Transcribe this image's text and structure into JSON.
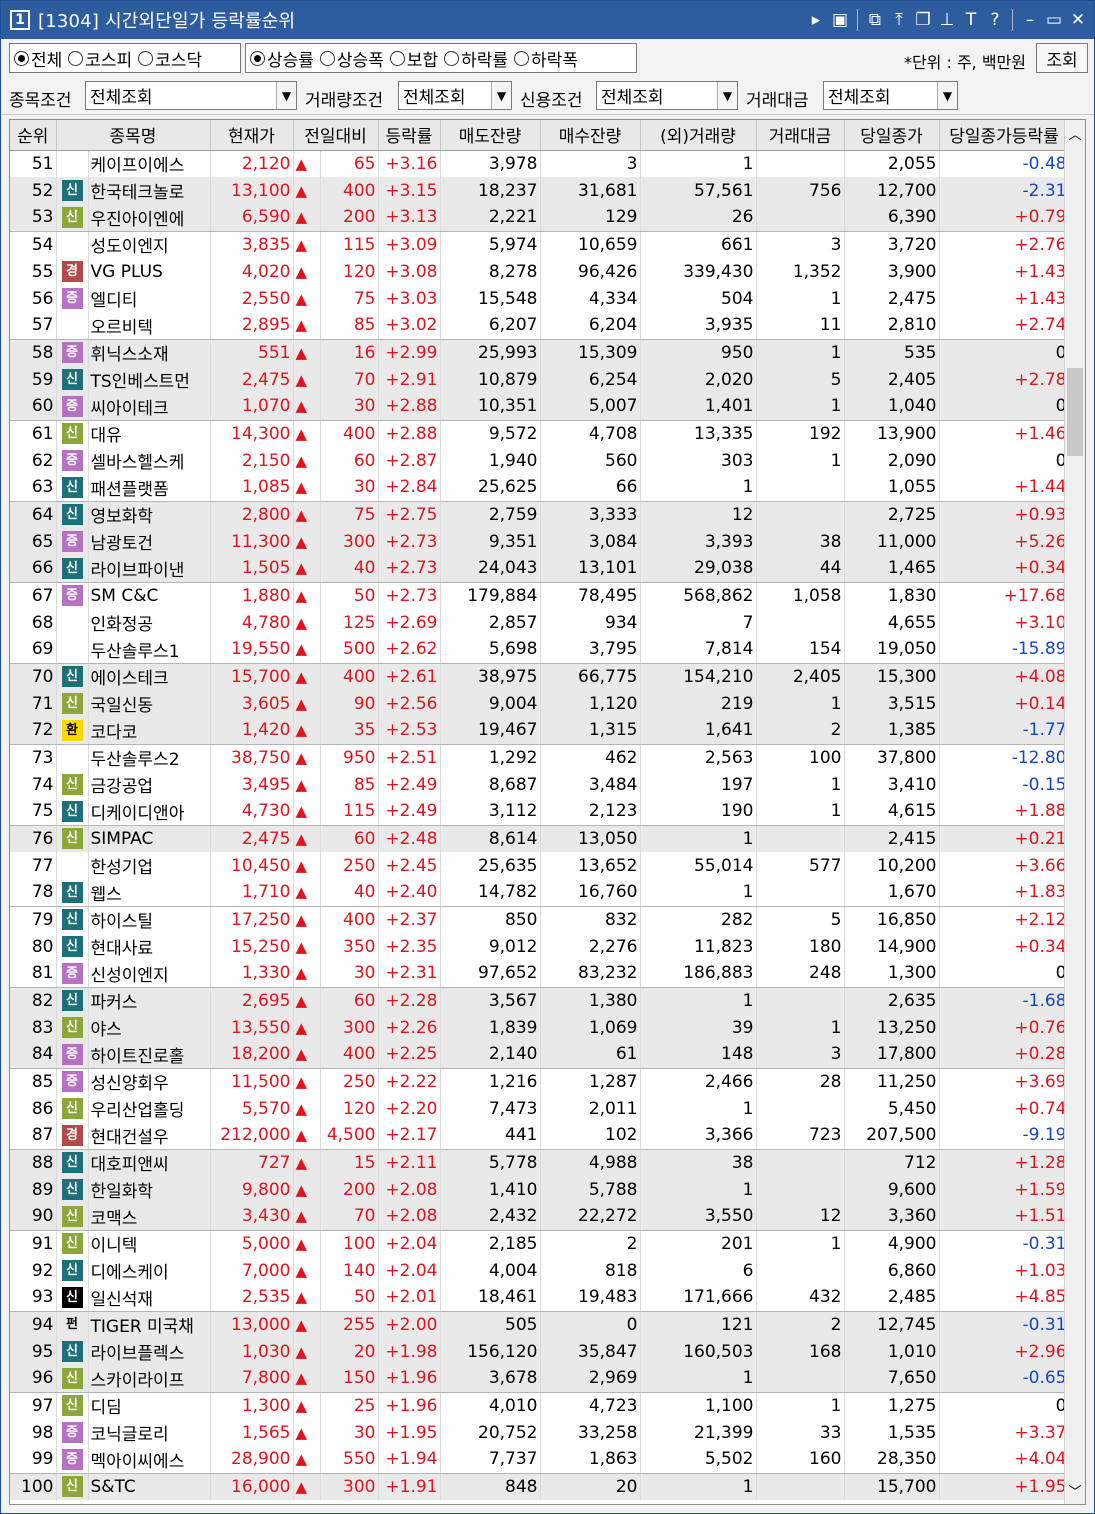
{
  "window": {
    "number": "1",
    "title": "[1304] 시간외단일가 등락률순위"
  },
  "titlebar_icons": [
    "chevron-right-icon",
    "box-icon",
    "copy-icon",
    "pin-top-icon",
    "restore-icon",
    "pin-icon",
    "font-icon",
    "help-icon",
    "minimize-icon",
    "maximize-icon",
    "close-icon"
  ],
  "market_options": [
    {
      "label": "전체",
      "selected": true
    },
    {
      "label": "코스피",
      "selected": false
    },
    {
      "label": "코스닥",
      "selected": false
    }
  ],
  "sort_options": [
    {
      "label": "상승률",
      "selected": true
    },
    {
      "label": "상승폭",
      "selected": false
    },
    {
      "label": "보합",
      "selected": false
    },
    {
      "label": "하락률",
      "selected": false
    },
    {
      "label": "하락폭",
      "selected": false
    }
  ],
  "unit_label": "*단위 : 주, 백만원",
  "query_button": "조회",
  "filters": [
    {
      "label": "종목조건",
      "value": "전체조회"
    },
    {
      "label": "거래량조건",
      "value": "전체조회"
    },
    {
      "label": "신용조건",
      "value": "전체조회"
    },
    {
      "label": "거래대금",
      "value": "전체조회"
    }
  ],
  "columns": [
    "순위",
    "종목명",
    "현재가",
    "전일대비",
    "등락률",
    "매도잔량",
    "매수잔량",
    "(외)거래량",
    "거래대금",
    "당일종가",
    "당일종가등락률"
  ],
  "colors": {
    "up": "#e0141e",
    "down": "#1545c9",
    "title_bar": "#2d5d9f"
  },
  "rows": [
    {
      "rank": "51",
      "badge": "",
      "name": "케이프이에스",
      "price": "2,120",
      "change": "65",
      "rate": "+3.16",
      "sell": "3,978",
      "buy": "3",
      "volume": "1",
      "amount": "",
      "close": "2,055",
      "close_rate": "-0.48"
    },
    {
      "rank": "52",
      "badge": "신",
      "name": "한국테크놀로",
      "price": "13,100",
      "change": "400",
      "rate": "+3.15",
      "sell": "18,237",
      "buy": "31,681",
      "volume": "57,561",
      "amount": "756",
      "close": "12,700",
      "close_rate": "-2.31"
    },
    {
      "rank": "53",
      "badge": "신",
      "name": "우진아이엔에",
      "price": "6,590",
      "change": "200",
      "rate": "+3.13",
      "sell": "2,221",
      "buy": "129",
      "volume": "26",
      "amount": "",
      "close": "6,390",
      "close_rate": "+0.79"
    },
    {
      "rank": "54",
      "badge": "",
      "name": "성도이엔지",
      "price": "3,835",
      "change": "115",
      "rate": "+3.09",
      "sell": "5,974",
      "buy": "10,659",
      "volume": "661",
      "amount": "3",
      "close": "3,720",
      "close_rate": "+2.76"
    },
    {
      "rank": "55",
      "badge": "경",
      "name": "VG PLUS",
      "price": "4,020",
      "change": "120",
      "rate": "+3.08",
      "sell": "8,278",
      "buy": "96,426",
      "volume": "339,430",
      "amount": "1,352",
      "close": "3,900",
      "close_rate": "+1.43"
    },
    {
      "rank": "56",
      "badge": "증",
      "name": "엘디티",
      "price": "2,550",
      "change": "75",
      "rate": "+3.03",
      "sell": "15,548",
      "buy": "4,334",
      "volume": "504",
      "amount": "1",
      "close": "2,475",
      "close_rate": "+1.43"
    },
    {
      "rank": "57",
      "badge": "",
      "name": "오르비텍",
      "price": "2,895",
      "change": "85",
      "rate": "+3.02",
      "sell": "6,207",
      "buy": "6,204",
      "volume": "3,935",
      "amount": "11",
      "close": "2,810",
      "close_rate": "+2.74"
    },
    {
      "rank": "58",
      "badge": "증",
      "name": "휘닉스소재",
      "price": "551",
      "change": "16",
      "rate": "+2.99",
      "sell": "25,993",
      "buy": "15,309",
      "volume": "950",
      "amount": "1",
      "close": "535",
      "close_rate": "0"
    },
    {
      "rank": "59",
      "badge": "신",
      "name": "TS인베스트먼",
      "price": "2,475",
      "change": "70",
      "rate": "+2.91",
      "sell": "10,879",
      "buy": "6,254",
      "volume": "2,020",
      "amount": "5",
      "close": "2,405",
      "close_rate": "+2.78"
    },
    {
      "rank": "60",
      "badge": "증",
      "name": "씨아이테크",
      "price": "1,070",
      "change": "30",
      "rate": "+2.88",
      "sell": "10,351",
      "buy": "5,007",
      "volume": "1,401",
      "amount": "1",
      "close": "1,040",
      "close_rate": "0"
    },
    {
      "rank": "61",
      "badge": "신",
      "name": "대유",
      "price": "14,300",
      "change": "400",
      "rate": "+2.88",
      "sell": "9,572",
      "buy": "4,708",
      "volume": "13,335",
      "amount": "192",
      "close": "13,900",
      "close_rate": "+1.46"
    },
    {
      "rank": "62",
      "badge": "증",
      "name": "셀바스헬스케",
      "price": "2,150",
      "change": "60",
      "rate": "+2.87",
      "sell": "1,940",
      "buy": "560",
      "volume": "303",
      "amount": "1",
      "close": "2,090",
      "close_rate": "0"
    },
    {
      "rank": "63",
      "badge": "신",
      "name": "패션플랫폼",
      "price": "1,085",
      "change": "30",
      "rate": "+2.84",
      "sell": "25,625",
      "buy": "66",
      "volume": "1",
      "amount": "",
      "close": "1,055",
      "close_rate": "+1.44"
    },
    {
      "rank": "64",
      "badge": "신",
      "name": "영보화학",
      "price": "2,800",
      "change": "75",
      "rate": "+2.75",
      "sell": "2,759",
      "buy": "3,333",
      "volume": "12",
      "amount": "",
      "close": "2,725",
      "close_rate": "+0.93"
    },
    {
      "rank": "65",
      "badge": "증",
      "name": "남광토건",
      "price": "11,300",
      "change": "300",
      "rate": "+2.73",
      "sell": "9,351",
      "buy": "3,084",
      "volume": "3,393",
      "amount": "38",
      "close": "11,000",
      "close_rate": "+5.26"
    },
    {
      "rank": "66",
      "badge": "신",
      "name": "라이브파이낸",
      "price": "1,505",
      "change": "40",
      "rate": "+2.73",
      "sell": "24,043",
      "buy": "13,101",
      "volume": "29,038",
      "amount": "44",
      "close": "1,465",
      "close_rate": "+0.34"
    },
    {
      "rank": "67",
      "badge": "증",
      "name": "SM C&C",
      "price": "1,880",
      "change": "50",
      "rate": "+2.73",
      "sell": "179,884",
      "buy": "78,495",
      "volume": "568,862",
      "amount": "1,058",
      "close": "1,830",
      "close_rate": "+17.68"
    },
    {
      "rank": "68",
      "badge": "",
      "name": "인화정공",
      "price": "4,780",
      "change": "125",
      "rate": "+2.69",
      "sell": "2,857",
      "buy": "934",
      "volume": "7",
      "amount": "",
      "close": "4,655",
      "close_rate": "+3.10"
    },
    {
      "rank": "69",
      "badge": "",
      "name": "두산솔루스1",
      "price": "19,550",
      "change": "500",
      "rate": "+2.62",
      "sell": "5,698",
      "buy": "3,795",
      "volume": "7,814",
      "amount": "154",
      "close": "19,050",
      "close_rate": "-15.89"
    },
    {
      "rank": "70",
      "badge": "신",
      "name": "에이스테크",
      "price": "15,700",
      "change": "400",
      "rate": "+2.61",
      "sell": "38,975",
      "buy": "66,775",
      "volume": "154,210",
      "amount": "2,405",
      "close": "15,300",
      "close_rate": "+4.08"
    },
    {
      "rank": "71",
      "badge": "신",
      "name": "국일신동",
      "price": "3,605",
      "change": "90",
      "rate": "+2.56",
      "sell": "9,004",
      "buy": "1,120",
      "volume": "219",
      "amount": "1",
      "close": "3,515",
      "close_rate": "+0.14"
    },
    {
      "rank": "72",
      "badge": "환",
      "name": "코다코",
      "price": "1,420",
      "change": "35",
      "rate": "+2.53",
      "sell": "19,467",
      "buy": "1,315",
      "volume": "1,641",
      "amount": "2",
      "close": "1,385",
      "close_rate": "-1.77"
    },
    {
      "rank": "73",
      "badge": "",
      "name": "두산솔루스2",
      "price": "38,750",
      "change": "950",
      "rate": "+2.51",
      "sell": "1,292",
      "buy": "462",
      "volume": "2,563",
      "amount": "100",
      "close": "37,800",
      "close_rate": "-12.80"
    },
    {
      "rank": "74",
      "badge": "신",
      "name": "금강공업",
      "price": "3,495",
      "change": "85",
      "rate": "+2.49",
      "sell": "8,687",
      "buy": "3,484",
      "volume": "197",
      "amount": "1",
      "close": "3,410",
      "close_rate": "-0.15"
    },
    {
      "rank": "75",
      "badge": "신",
      "name": "디케이디앤아",
      "price": "4,730",
      "change": "115",
      "rate": "+2.49",
      "sell": "3,112",
      "buy": "2,123",
      "volume": "190",
      "amount": "1",
      "close": "4,615",
      "close_rate": "+1.88"
    },
    {
      "rank": "76",
      "badge": "신",
      "name": "SIMPAC",
      "price": "2,475",
      "change": "60",
      "rate": "+2.48",
      "sell": "8,614",
      "buy": "13,050",
      "volume": "1",
      "amount": "",
      "close": "2,415",
      "close_rate": "+0.21"
    },
    {
      "rank": "77",
      "badge": "",
      "name": "한성기업",
      "price": "10,450",
      "change": "250",
      "rate": "+2.45",
      "sell": "25,635",
      "buy": "13,652",
      "volume": "55,014",
      "amount": "577",
      "close": "10,200",
      "close_rate": "+3.66"
    },
    {
      "rank": "78",
      "badge": "신",
      "name": "웹스",
      "price": "1,710",
      "change": "40",
      "rate": "+2.40",
      "sell": "14,782",
      "buy": "16,760",
      "volume": "1",
      "amount": "",
      "close": "1,670",
      "close_rate": "+1.83"
    },
    {
      "rank": "79",
      "badge": "신",
      "name": "하이스틸",
      "price": "17,250",
      "change": "400",
      "rate": "+2.37",
      "sell": "850",
      "buy": "832",
      "volume": "282",
      "amount": "5",
      "close": "16,850",
      "close_rate": "+2.12"
    },
    {
      "rank": "80",
      "badge": "신",
      "name": "현대사료",
      "price": "15,250",
      "change": "350",
      "rate": "+2.35",
      "sell": "9,012",
      "buy": "2,276",
      "volume": "11,823",
      "amount": "180",
      "close": "14,900",
      "close_rate": "+0.34"
    },
    {
      "rank": "81",
      "badge": "증",
      "name": "신성이엔지",
      "price": "1,330",
      "change": "30",
      "rate": "+2.31",
      "sell": "97,652",
      "buy": "83,232",
      "volume": "186,883",
      "amount": "248",
      "close": "1,300",
      "close_rate": "0"
    },
    {
      "rank": "82",
      "badge": "신",
      "name": "파커스",
      "price": "2,695",
      "change": "60",
      "rate": "+2.28",
      "sell": "3,567",
      "buy": "1,380",
      "volume": "1",
      "amount": "",
      "close": "2,635",
      "close_rate": "-1.68"
    },
    {
      "rank": "83",
      "badge": "신",
      "name": "야스",
      "price": "13,550",
      "change": "300",
      "rate": "+2.26",
      "sell": "1,839",
      "buy": "1,069",
      "volume": "39",
      "amount": "1",
      "close": "13,250",
      "close_rate": "+0.76"
    },
    {
      "rank": "84",
      "badge": "증",
      "name": "하이트진로홀",
      "price": "18,200",
      "change": "400",
      "rate": "+2.25",
      "sell": "2,140",
      "buy": "61",
      "volume": "148",
      "amount": "3",
      "close": "17,800",
      "close_rate": "+0.28"
    },
    {
      "rank": "85",
      "badge": "증",
      "name": "성신양회우",
      "price": "11,500",
      "change": "250",
      "rate": "+2.22",
      "sell": "1,216",
      "buy": "1,287",
      "volume": "2,466",
      "amount": "28",
      "close": "11,250",
      "close_rate": "+3.69"
    },
    {
      "rank": "86",
      "badge": "신",
      "name": "우리산업홀딩",
      "price": "5,570",
      "change": "120",
      "rate": "+2.20",
      "sell": "7,473",
      "buy": "2,011",
      "volume": "1",
      "amount": "",
      "close": "5,450",
      "close_rate": "+0.74"
    },
    {
      "rank": "87",
      "badge": "경",
      "name": "현대건설우",
      "price": "212,000",
      "change": "4,500",
      "rate": "+2.17",
      "sell": "441",
      "buy": "102",
      "volume": "3,366",
      "amount": "723",
      "close": "207,500",
      "close_rate": "-9.19"
    },
    {
      "rank": "88",
      "badge": "신",
      "name": "대호피앤씨",
      "price": "727",
      "change": "15",
      "rate": "+2.11",
      "sell": "5,778",
      "buy": "4,988",
      "volume": "38",
      "amount": "",
      "close": "712",
      "close_rate": "+1.28"
    },
    {
      "rank": "89",
      "badge": "신",
      "name": "한일화학",
      "price": "9,800",
      "change": "200",
      "rate": "+2.08",
      "sell": "1,410",
      "buy": "5,788",
      "volume": "1",
      "amount": "",
      "close": "9,600",
      "close_rate": "+1.59"
    },
    {
      "rank": "90",
      "badge": "신",
      "name": "코맥스",
      "price": "3,430",
      "change": "70",
      "rate": "+2.08",
      "sell": "2,432",
      "buy": "22,272",
      "volume": "3,550",
      "amount": "12",
      "close": "3,360",
      "close_rate": "+1.51"
    },
    {
      "rank": "91",
      "badge": "신",
      "name": "이니텍",
      "price": "5,000",
      "change": "100",
      "rate": "+2.04",
      "sell": "2,185",
      "buy": "2",
      "volume": "201",
      "amount": "1",
      "close": "4,900",
      "close_rate": "-0.31"
    },
    {
      "rank": "92",
      "badge": "신",
      "name": "디에스케이",
      "price": "7,000",
      "change": "140",
      "rate": "+2.04",
      "sell": "4,004",
      "buy": "818",
      "volume": "6",
      "amount": "",
      "close": "6,860",
      "close_rate": "+1.03"
    },
    {
      "rank": "93",
      "badge": "신",
      "name": "일신석재",
      "price": "2,535",
      "change": "50",
      "rate": "+2.01",
      "sell": "18,461",
      "buy": "19,483",
      "volume": "171,666",
      "amount": "432",
      "close": "2,485",
      "close_rate": "+4.85"
    },
    {
      "rank": "94",
      "badge": "펀",
      "name": "TIGER 미국채",
      "price": "13,000",
      "change": "255",
      "rate": "+2.00",
      "sell": "505",
      "buy": "0",
      "volume": "121",
      "amount": "2",
      "close": "12,745",
      "close_rate": "-0.31"
    },
    {
      "rank": "95",
      "badge": "신",
      "name": "라이브플렉스",
      "price": "1,030",
      "change": "20",
      "rate": "+1.98",
      "sell": "156,120",
      "buy": "35,847",
      "volume": "160,503",
      "amount": "168",
      "close": "1,010",
      "close_rate": "+2.96"
    },
    {
      "rank": "96",
      "badge": "신",
      "name": "스카이라이프",
      "price": "7,800",
      "change": "150",
      "rate": "+1.96",
      "sell": "3,678",
      "buy": "2,969",
      "volume": "1",
      "amount": "",
      "close": "7,650",
      "close_rate": "-0.65"
    },
    {
      "rank": "97",
      "badge": "신",
      "name": "디딤",
      "price": "1,300",
      "change": "25",
      "rate": "+1.96",
      "sell": "4,010",
      "buy": "4,723",
      "volume": "1,100",
      "amount": "1",
      "close": "1,275",
      "close_rate": "0"
    },
    {
      "rank": "98",
      "badge": "증",
      "name": "코닉글로리",
      "price": "1,565",
      "change": "30",
      "rate": "+1.95",
      "sell": "20,752",
      "buy": "33,258",
      "volume": "21,399",
      "amount": "33",
      "close": "1,535",
      "close_rate": "+3.37"
    },
    {
      "rank": "99",
      "badge": "증",
      "name": "멕아이씨에스",
      "price": "28,900",
      "change": "550",
      "rate": "+1.94",
      "sell": "7,737",
      "buy": "1,863",
      "volume": "5,502",
      "amount": "160",
      "close": "28,350",
      "close_rate": "+4.04"
    },
    {
      "rank": "100",
      "badge": "신",
      "name": "S&TC",
      "price": "16,000",
      "change": "300",
      "rate": "+1.91",
      "sell": "848",
      "buy": "20",
      "volume": "1",
      "amount": "",
      "close": "15,700",
      "close_rate": "+1.95"
    }
  ]
}
